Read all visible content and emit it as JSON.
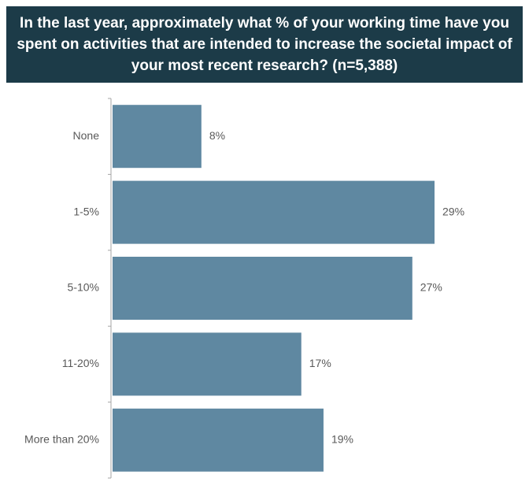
{
  "chart_data": {
    "type": "hbar",
    "title": "In the last year, approximately what % of your working time have you spent on activities that are intended to increase the societal impact of your most recent research?   (n=5,388)",
    "categories": [
      "None",
      "1-5%",
      "5-10%",
      "11-20%",
      "More than 20%"
    ],
    "values": [
      8,
      29,
      27,
      17,
      19
    ],
    "value_labels": [
      "8%",
      "29%",
      "27%",
      "17%",
      "19%"
    ],
    "color": "#5f88a1"
  }
}
